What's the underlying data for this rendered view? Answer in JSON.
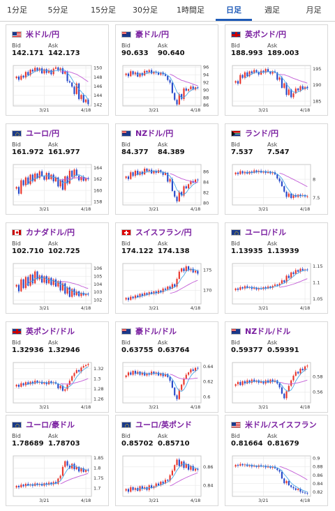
{
  "tabs": [
    {
      "label": "1分足",
      "active": false
    },
    {
      "label": "5分足",
      "active": false
    },
    {
      "label": "15分足",
      "active": false
    },
    {
      "label": "30分足",
      "active": false
    },
    {
      "label": "1時間足",
      "active": false
    },
    {
      "label": "日足",
      "active": true
    },
    {
      "label": "週足",
      "active": false
    },
    {
      "label": "月足",
      "active": false
    }
  ],
  "labels": {
    "bid": "Bid",
    "ask": "Ask"
  },
  "colors": {
    "up": "#e8342a",
    "down": "#2547c9",
    "ma_short": "#49a7e6",
    "ma_long": "#c25bd6",
    "pair_text": "#7a1fa0",
    "tab_active": "#1f5bb8"
  },
  "chart_data": [
    {
      "type": "candlestick",
      "pair": "米ドル/円",
      "flag": "us-flag-icon",
      "bid": "142.171",
      "ask": "142.173",
      "ylim": [
        141.7,
        150.5
      ],
      "yticks": [
        {
          "v": 150,
          "t": "150"
        },
        {
          "v": 148,
          "t": "148"
        },
        {
          "v": 146,
          "t": "146"
        },
        {
          "v": 144,
          "t": "144"
        },
        {
          "v": 142,
          "t": "142"
        }
      ],
      "xticks": [
        "3/21",
        "4/18"
      ],
      "close": [
        148.1,
        147.4,
        148.3,
        147.9,
        149.1,
        148.4,
        149.6,
        149.2,
        150.0,
        149.4,
        149.9,
        148.8,
        149.7,
        148.9,
        149.5,
        148.6,
        149.8,
        150.1,
        149.4,
        149.9,
        148.7,
        149.2,
        147.1,
        146.8,
        145.9,
        144.3,
        146.6,
        143.2,
        144.1,
        142.5,
        143.1,
        142.1
      ]
    },
    {
      "type": "candlestick",
      "pair": "豪ドル/円",
      "flag": "au-flag-icon",
      "bid": "90.633",
      "ask": "90.640",
      "ylim": [
        85.8,
        96.4
      ],
      "yticks": [
        {
          "v": 96,
          "t": "96"
        },
        {
          "v": 94,
          "t": "94"
        },
        {
          "v": 92,
          "t": "92"
        },
        {
          "v": 90,
          "t": "90"
        },
        {
          "v": 88,
          "t": "88"
        },
        {
          "v": 86,
          "t": "86"
        }
      ],
      "xticks": [
        "3/21",
        "4/18"
      ],
      "close": [
        94.3,
        93.6,
        94.9,
        94.1,
        94.6,
        93.5,
        94.4,
        93.8,
        95.0,
        94.6,
        95.2,
        94.3,
        94.8,
        94.5,
        94.0,
        94.6,
        94.1,
        93.7,
        92.6,
        91.9,
        89.2,
        87.4,
        86.2,
        88.9,
        87.6,
        90.4,
        89.8,
        90.2,
        90.9,
        90.1,
        90.7,
        90.6
      ]
    },
    {
      "type": "candlestick",
      "pair": "英ポンド/円",
      "flag": "gb-flag-icon",
      "bid": "188.993",
      "ask": "189.003",
      "ylim": [
        183.5,
        196.0
      ],
      "yticks": [
        {
          "v": 195,
          "t": "195"
        },
        {
          "v": 190,
          "t": "190"
        },
        {
          "v": 185,
          "t": "185"
        }
      ],
      "xticks": [
        "3/21",
        "4/18"
      ],
      "close": [
        191.2,
        190.4,
        193.1,
        192.2,
        193.9,
        192.7,
        194.2,
        193.6,
        194.6,
        194.0,
        193.2,
        194.4,
        193.8,
        194.9,
        194.1,
        193.5,
        194.2,
        193.8,
        191.6,
        192.3,
        189.1,
        190.5,
        186.9,
        188.6,
        186.2,
        187.4,
        188.9,
        188.3,
        189.6,
        188.7,
        189.4,
        189.0
      ]
    },
    {
      "type": "candlestick",
      "pair": "ユーロ/円",
      "flag": "eu-flag-icon",
      "bid": "161.972",
      "ask": "161.977",
      "ylim": [
        157.4,
        164.6
      ],
      "yticks": [
        {
          "v": 164,
          "t": "164"
        },
        {
          "v": 162,
          "t": "162"
        },
        {
          "v": 160,
          "t": "160"
        },
        {
          "v": 158,
          "t": "158"
        }
      ],
      "xticks": [
        "3/21",
        "4/18"
      ],
      "close": [
        160.6,
        159.4,
        161.8,
        160.9,
        162.3,
        161.1,
        162.8,
        161.6,
        163.0,
        162.2,
        163.4,
        162.5,
        161.9,
        163.1,
        162.0,
        162.8,
        161.6,
        162.3,
        160.7,
        161.8,
        160.1,
        162.5,
        161.2,
        163.5,
        162.4,
        163.7,
        162.6,
        161.8,
        162.4,
        161.7,
        162.2,
        162.0
      ]
    },
    {
      "type": "candlestick",
      "pair": "NZドル/円",
      "flag": "nz-flag-icon",
      "bid": "84.377",
      "ask": "84.389",
      "ylim": [
        79.6,
        87.4
      ],
      "yticks": [
        {
          "v": 86,
          "t": "86"
        },
        {
          "v": 84,
          "t": "84"
        },
        {
          "v": 82,
          "t": "82"
        },
        {
          "v": 80,
          "t": "80"
        }
      ],
      "xticks": [
        "3/21",
        "4/18"
      ],
      "close": [
        85.1,
        84.6,
        85.9,
        85.2,
        86.2,
        85.4,
        86.0,
        85.5,
        86.6,
        86.1,
        86.4,
        85.7,
        86.2,
        85.8,
        86.3,
        85.9,
        85.4,
        85.8,
        84.1,
        84.6,
        82.3,
        81.2,
        80.3,
        82.1,
        81.4,
        83.2,
        82.8,
        83.6,
        84.2,
        83.9,
        84.5,
        84.4
      ]
    },
    {
      "type": "candlestick",
      "pair": "ランド/円",
      "flag": "za-flag-icon",
      "bid": "7.537",
      "ask": "7.547",
      "ylim": [
        7.3,
        8.4
      ],
      "yticks": [
        {
          "v": 8.0,
          "t": "8"
        },
        {
          "v": 7.5,
          "t": "7.5"
        }
      ],
      "xticks": [
        "3/21",
        "4/18"
      ],
      "close": [
        8.18,
        8.14,
        8.22,
        8.16,
        8.2,
        8.15,
        8.21,
        8.17,
        8.24,
        8.19,
        8.23,
        8.18,
        8.22,
        8.17,
        8.21,
        8.16,
        8.19,
        8.13,
        8.02,
        7.94,
        7.81,
        7.66,
        7.52,
        7.61,
        7.49,
        7.57,
        7.52,
        7.58,
        7.54,
        7.57,
        7.53,
        7.54
      ]
    },
    {
      "type": "candlestick",
      "pair": "カナダドル/円",
      "flag": "ca-flag-icon",
      "bid": "102.710",
      "ask": "102.725",
      "ylim": [
        101.5,
        106.6
      ],
      "yticks": [
        {
          "v": 106,
          "t": "106"
        },
        {
          "v": 105,
          "t": "105"
        },
        {
          "v": 104,
          "t": "104"
        },
        {
          "v": 103,
          "t": "103"
        },
        {
          "v": 102,
          "t": "102"
        }
      ],
      "xticks": [
        "3/21",
        "4/18"
      ],
      "close": [
        103.9,
        103.1,
        104.6,
        103.5,
        104.9,
        103.8,
        105.2,
        104.1,
        105.6,
        104.6,
        105.1,
        104.2,
        105.0,
        104.1,
        104.8,
        103.9,
        104.6,
        103.7,
        104.4,
        103.2,
        104.1,
        102.8,
        103.6,
        102.4,
        103.4,
        102.6,
        103.1,
        102.5,
        102.9,
        102.6,
        102.8,
        102.7
      ]
    },
    {
      "type": "candlestick",
      "pair": "スイスフラン/円",
      "flag": "ch-flag-icon",
      "bid": "174.122",
      "ask": "174.138",
      "ylim": [
        166.6,
        176.6
      ],
      "yticks": [
        {
          "v": 175,
          "t": "175"
        },
        {
          "v": 170,
          "t": "170"
        }
      ],
      "xticks": [
        "3/21",
        "4/18"
      ],
      "close": [
        168.1,
        167.6,
        168.4,
        168.0,
        168.7,
        168.3,
        169.1,
        168.6,
        169.3,
        168.9,
        169.5,
        169.1,
        169.7,
        169.2,
        169.9,
        169.5,
        170.4,
        170.1,
        170.9,
        170.4,
        171.5,
        170.9,
        172.8,
        174.6,
        175.4,
        174.7,
        175.9,
        174.9,
        175.3,
        174.4,
        174.8,
        174.1
      ]
    },
    {
      "type": "candlestick",
      "pair": "ユーロ/ドル",
      "flag": "eu-flag-icon",
      "bid": "1.13935",
      "ask": "1.13939",
      "ylim": [
        1.035,
        1.158
      ],
      "yticks": [
        {
          "v": 1.15,
          "t": "1.15"
        },
        {
          "v": 1.1,
          "t": "1.1"
        },
        {
          "v": 1.05,
          "t": "1.05"
        }
      ],
      "xticks": [
        "3/21",
        "4/18"
      ],
      "close": [
        1.082,
        1.078,
        1.086,
        1.082,
        1.089,
        1.084,
        1.087,
        1.081,
        1.085,
        1.079,
        1.083,
        1.08,
        1.086,
        1.082,
        1.088,
        1.084,
        1.09,
        1.094,
        1.091,
        1.097,
        1.107,
        1.101,
        1.121,
        1.114,
        1.131,
        1.126,
        1.138,
        1.133,
        1.142,
        1.137,
        1.14,
        1.139
      ]
    },
    {
      "type": "candlestick",
      "pair": "英ポンド/ドル",
      "flag": "gb-flag-icon",
      "bid": "1.32936",
      "ask": "1.32946",
      "ylim": [
        1.252,
        1.332
      ],
      "yticks": [
        {
          "v": 1.32,
          "t": "1.32"
        },
        {
          "v": 1.3,
          "t": "1.3"
        },
        {
          "v": 1.28,
          "t": "1.28"
        },
        {
          "v": 1.26,
          "t": "1.26"
        }
      ],
      "xticks": [
        "3/21",
        "4/18"
      ],
      "close": [
        1.288,
        1.284,
        1.291,
        1.287,
        1.293,
        1.289,
        1.294,
        1.29,
        1.296,
        1.292,
        1.294,
        1.29,
        1.293,
        1.289,
        1.295,
        1.291,
        1.293,
        1.29,
        1.281,
        1.286,
        1.276,
        1.279,
        1.288,
        1.296,
        1.305,
        1.311,
        1.317,
        1.314,
        1.322,
        1.325,
        1.327,
        1.329
      ]
    },
    {
      "type": "candlestick",
      "pair": "豪ドル/ドル",
      "flag": "au-flag-icon",
      "bid": "0.63755",
      "ask": "0.63764",
      "ylim": [
        0.592,
        0.645
      ],
      "yticks": [
        {
          "v": 0.64,
          "t": "0.64"
        },
        {
          "v": 0.62,
          "t": "0.62"
        },
        {
          "v": 0.6,
          "t": "0.6"
        }
      ],
      "xticks": [
        "3/21",
        "4/18"
      ],
      "close": [
        0.628,
        0.632,
        0.629,
        0.634,
        0.63,
        0.633,
        0.629,
        0.632,
        0.628,
        0.631,
        0.629,
        0.633,
        0.63,
        0.632,
        0.628,
        0.631,
        0.627,
        0.63,
        0.626,
        0.621,
        0.612,
        0.602,
        0.597,
        0.609,
        0.616,
        0.624,
        0.629,
        0.632,
        0.636,
        0.634,
        0.638,
        0.6376
      ]
    },
    {
      "type": "candlestick",
      "pair": "NZドル/ドル",
      "flag": "nz-flag-icon",
      "bid": "0.59377",
      "ask": "0.59391",
      "ylim": [
        0.546,
        0.598
      ],
      "yticks": [
        {
          "v": 0.58,
          "t": "0.58"
        },
        {
          "v": 0.56,
          "t": "0.56"
        }
      ],
      "xticks": [
        "3/21",
        "4/18"
      ],
      "close": [
        0.57,
        0.573,
        0.569,
        0.574,
        0.571,
        0.575,
        0.572,
        0.576,
        0.573,
        0.575,
        0.572,
        0.574,
        0.571,
        0.575,
        0.572,
        0.576,
        0.573,
        0.575,
        0.571,
        0.566,
        0.558,
        0.552,
        0.561,
        0.568,
        0.575,
        0.581,
        0.586,
        0.584,
        0.59,
        0.588,
        0.593,
        0.594
      ]
    },
    {
      "type": "candlestick",
      "pair": "ユーロ/豪ドル",
      "flag": "eu-flag-icon",
      "bid": "1.78689",
      "ask": "1.78703",
      "ylim": [
        1.66,
        1.86
      ],
      "yticks": [
        {
          "v": 1.85,
          "t": "1.85"
        },
        {
          "v": 1.8,
          "t": "1.8"
        },
        {
          "v": 1.75,
          "t": "1.75"
        },
        {
          "v": 1.7,
          "t": "1.7"
        }
      ],
      "xticks": [
        "3/21",
        "4/18"
      ],
      "close": [
        1.712,
        1.705,
        1.718,
        1.71,
        1.722,
        1.714,
        1.72,
        1.712,
        1.724,
        1.716,
        1.722,
        1.713,
        1.725,
        1.717,
        1.728,
        1.719,
        1.731,
        1.722,
        1.748,
        1.762,
        1.806,
        1.834,
        1.812,
        1.798,
        1.821,
        1.794,
        1.806,
        1.783,
        1.798,
        1.781,
        1.792,
        1.787
      ]
    },
    {
      "type": "candlestick",
      "pair": "ユーロ/英ポンド",
      "flag": "eu-flag-icon",
      "bid": "0.85702",
      "ask": "0.85710",
      "ylim": [
        0.828,
        0.872
      ],
      "yticks": [
        {
          "v": 0.86,
          "t": "0.86"
        },
        {
          "v": 0.84,
          "t": "0.84"
        }
      ],
      "xticks": [
        "3/21",
        "4/18"
      ],
      "close": [
        0.836,
        0.833,
        0.838,
        0.835,
        0.837,
        0.834,
        0.839,
        0.836,
        0.838,
        0.835,
        0.84,
        0.837,
        0.839,
        0.842,
        0.84,
        0.844,
        0.842,
        0.846,
        0.845,
        0.851,
        0.856,
        0.862,
        0.868,
        0.861,
        0.866,
        0.859,
        0.863,
        0.857,
        0.861,
        0.856,
        0.858,
        0.857
      ]
    },
    {
      "type": "candlestick",
      "pair": "米ドル/スイスフラン",
      "flag": "us-flag-icon",
      "bid": "0.81664",
      "ask": "0.81679",
      "ylim": [
        0.81,
        0.905
      ],
      "yticks": [
        {
          "v": 0.9,
          "t": "0.9"
        },
        {
          "v": 0.88,
          "t": "0.88"
        },
        {
          "v": 0.86,
          "t": "0.86"
        },
        {
          "v": 0.84,
          "t": "0.84"
        },
        {
          "v": 0.82,
          "t": "0.82"
        }
      ],
      "xticks": [
        "3/21",
        "4/18"
      ],
      "close": [
        0.884,
        0.882,
        0.886,
        0.883,
        0.885,
        0.881,
        0.884,
        0.88,
        0.882,
        0.879,
        0.883,
        0.88,
        0.882,
        0.878,
        0.881,
        0.877,
        0.88,
        0.876,
        0.872,
        0.868,
        0.852,
        0.841,
        0.846,
        0.836,
        0.832,
        0.829,
        0.825,
        0.828,
        0.821,
        0.819,
        0.818,
        0.817
      ]
    }
  ]
}
